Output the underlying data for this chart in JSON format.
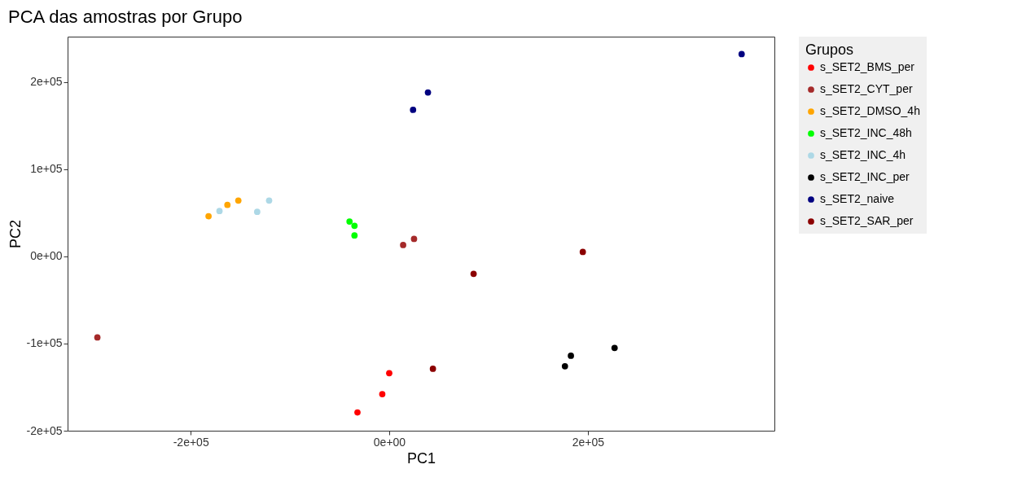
{
  "chart_data": {
    "type": "scatter",
    "title": "PCA das amostras por Grupo",
    "xlabel": "PC1",
    "ylabel": "PC2",
    "legend_title": "Grupos",
    "legend": "right",
    "grid": false,
    "marker": "circle",
    "xlim": [
      -324000,
      388000
    ],
    "ylim": [
      -200000,
      252000
    ],
    "xticks": [
      {
        "value": -200000,
        "label": "-2e+05"
      },
      {
        "value": 0,
        "label": "0e+00"
      },
      {
        "value": 200000,
        "label": "2e+05"
      }
    ],
    "yticks": [
      {
        "value": -200000,
        "label": "-2e+05"
      },
      {
        "value": -100000,
        "label": "-1e+05"
      },
      {
        "value": 0,
        "label": "0e+00"
      },
      {
        "value": 100000,
        "label": "1e+05"
      },
      {
        "value": 200000,
        "label": "2e+05"
      }
    ],
    "series": [
      {
        "name": "s_SET2_BMS_per",
        "color": "#ff0000",
        "x": [
          0,
          -7000,
          -32000
        ],
        "values": [
          -134000,
          -158000,
          -179000
        ]
      },
      {
        "name": "s_SET2_CYT_per",
        "color": "#a52a2a",
        "x": [
          -294000,
          14000,
          25000
        ],
        "values": [
          -93000,
          13000,
          20000
        ]
      },
      {
        "name": "s_SET2_DMSO_4h",
        "color": "#ffa500",
        "x": [
          -182000,
          -163000,
          -152000
        ],
        "values": [
          46000,
          59000,
          64000
        ]
      },
      {
        "name": "s_SET2_INC_48h",
        "color": "#00ff00",
        "x": [
          -40000,
          -35000,
          -35000
        ],
        "values": [
          40000,
          35000,
          24000
        ]
      },
      {
        "name": "s_SET2_INC_4h",
        "color": "#add8e6",
        "x": [
          -171000,
          -133000,
          -121000
        ],
        "values": [
          52000,
          51000,
          64000
        ]
      },
      {
        "name": "s_SET2_INC_per",
        "color": "#000000",
        "x": [
          177000,
          183000,
          227000
        ],
        "values": [
          -126000,
          -114000,
          -105000
        ]
      },
      {
        "name": "s_SET2_naive",
        "color": "#000080",
        "x": [
          24000,
          39000,
          355000
        ],
        "values": [
          168000,
          188000,
          232000
        ]
      },
      {
        "name": "s_SET2_SAR_per",
        "color": "#8b0000",
        "x": [
          44000,
          85000,
          195000
        ],
        "values": [
          -129000,
          -20000,
          5000
        ]
      }
    ]
  }
}
